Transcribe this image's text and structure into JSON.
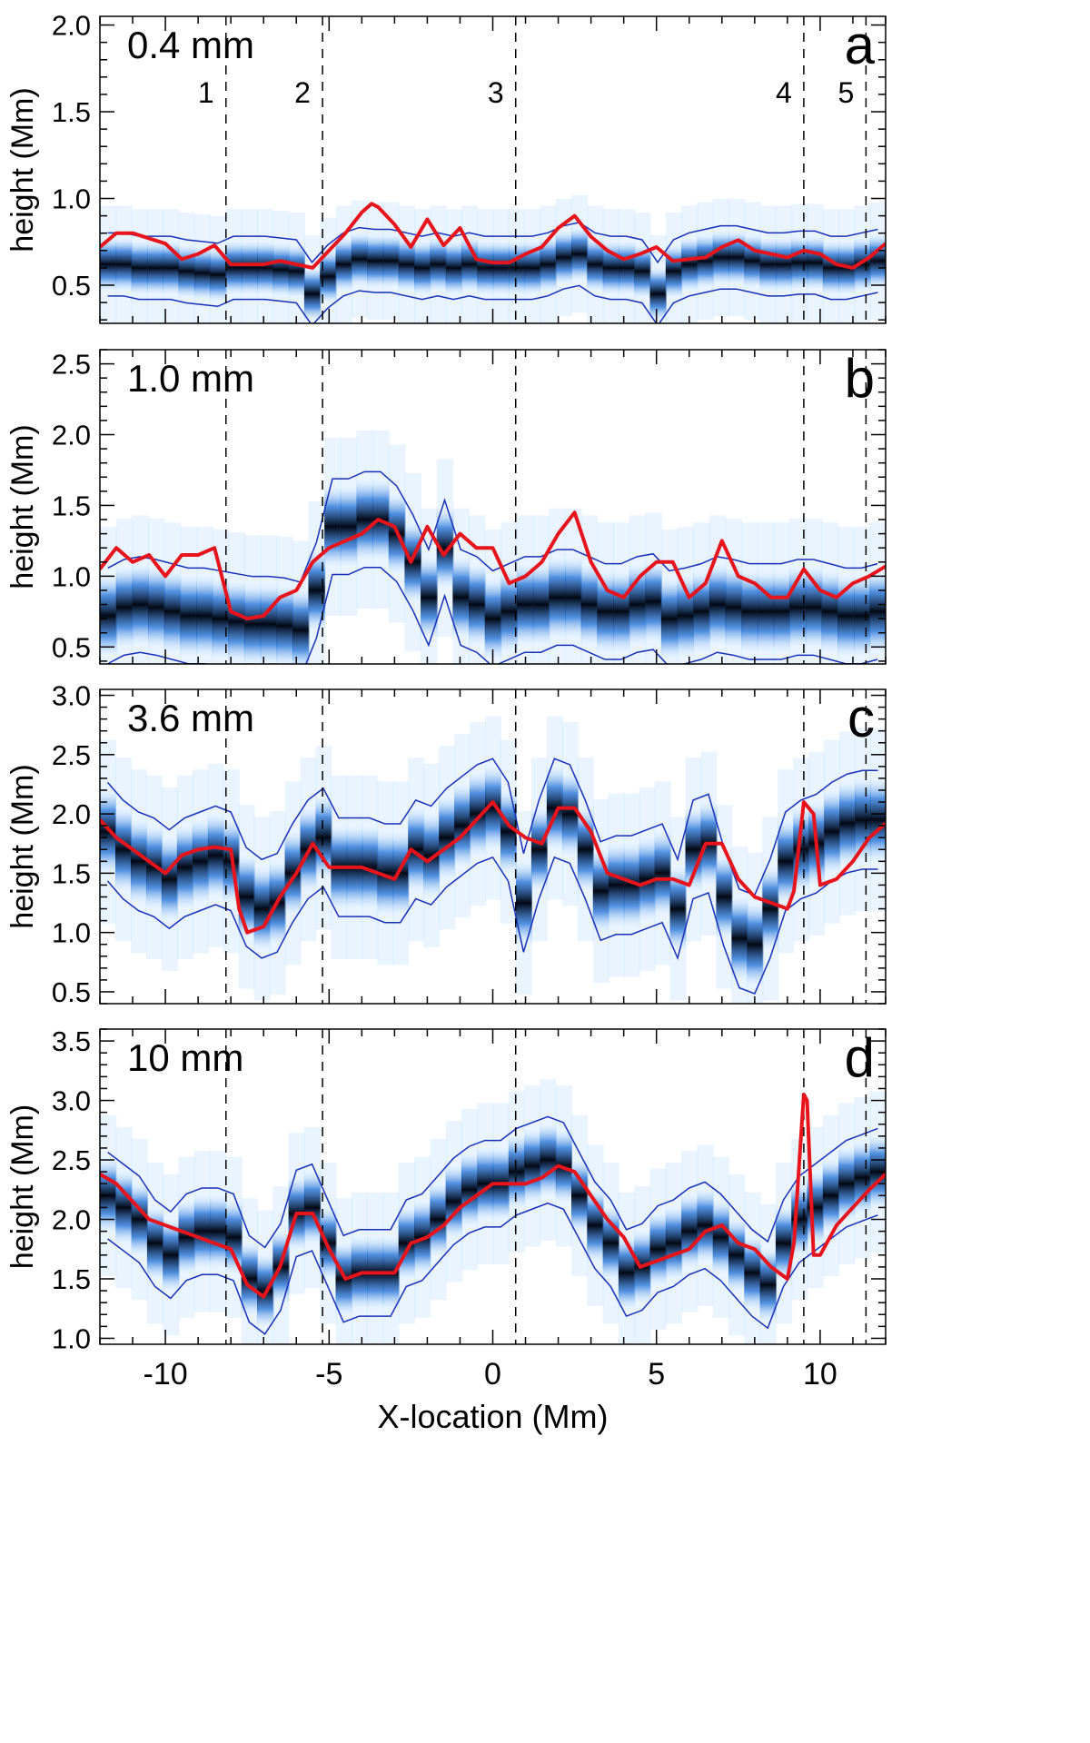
{
  "figure": {
    "xlabel": "X-location (Mm)",
    "ylabel": "height (Mm)",
    "xlim": [
      -12,
      12
    ],
    "xticks": [
      -10,
      -5,
      0,
      5,
      10
    ],
    "xtick_labels": [
      "-10",
      "-5",
      "0",
      "5",
      "10"
    ],
    "vlines": [
      {
        "x": -8.15,
        "label": "1"
      },
      {
        "x": -5.2,
        "label": "2"
      },
      {
        "x": 0.7,
        "label": "3"
      },
      {
        "x": 9.5,
        "label": "4"
      },
      {
        "x": 11.4,
        "label": "5"
      }
    ],
    "colors": {
      "red_curve": "#e8141c",
      "contour": "#1a2fb5",
      "dark": "#030814",
      "mid": "#1f6fd6",
      "light": "#bfe0ff"
    }
  },
  "chart_data": [
    {
      "type": "heatmap",
      "panel": "a",
      "label": "0.4 mm",
      "ylim": [
        0.28,
        2.05
      ],
      "yticks": [
        0.5,
        1.0,
        1.5,
        2.0
      ],
      "ytick_labels": [
        "0.5",
        "1.0",
        "1.5",
        "2.0"
      ],
      "red_curve": {
        "x": [
          -12,
          -11.5,
          -11,
          -10.5,
          -10,
          -9.5,
          -9,
          -8.5,
          -8,
          -7.5,
          -7,
          -6.5,
          -6,
          -5.5,
          -5,
          -4.5,
          -4,
          -3.7,
          -3.5,
          -3,
          -2.5,
          -2,
          -1.5,
          -1,
          -0.5,
          0,
          0.5,
          1,
          1.5,
          2,
          2.5,
          3,
          3.5,
          4,
          4.5,
          5,
          5.5,
          6,
          6.5,
          7,
          7.5,
          8,
          8.5,
          9,
          9.5,
          10,
          10.5,
          11,
          11.5,
          12
        ],
        "y": [
          0.72,
          0.8,
          0.8,
          0.77,
          0.74,
          0.65,
          0.68,
          0.73,
          0.62,
          0.62,
          0.62,
          0.64,
          0.62,
          0.6,
          0.7,
          0.8,
          0.92,
          0.97,
          0.95,
          0.85,
          0.72,
          0.88,
          0.73,
          0.83,
          0.65,
          0.63,
          0.63,
          0.68,
          0.72,
          0.83,
          0.9,
          0.78,
          0.7,
          0.65,
          0.68,
          0.72,
          0.64,
          0.65,
          0.66,
          0.72,
          0.76,
          0.7,
          0.68,
          0.66,
          0.7,
          0.68,
          0.62,
          0.6,
          0.66,
          0.74
        ]
      },
      "band_center": [
        0.62,
        0.62,
        0.6,
        0.6,
        0.6,
        0.58,
        0.57,
        0.56,
        0.6,
        0.6,
        0.6,
        0.59,
        0.58,
        0.45,
        0.55,
        0.62,
        0.65,
        0.64,
        0.64,
        0.62,
        0.6,
        0.62,
        0.6,
        0.62,
        0.6,
        0.6,
        0.6,
        0.6,
        0.62,
        0.66,
        0.68,
        0.62,
        0.6,
        0.6,
        0.58,
        0.45,
        0.58,
        0.62,
        0.64,
        0.66,
        0.66,
        0.64,
        0.62,
        0.62,
        0.63,
        0.63,
        0.6,
        0.6,
        0.62,
        0.64
      ],
      "band_halfwidth": 0.07
    },
    {
      "type": "heatmap",
      "panel": "b",
      "label": "1.0 mm",
      "ylim": [
        0.38,
        2.6
      ],
      "yticks": [
        0.5,
        1.0,
        1.5,
        2.0,
        2.5
      ],
      "ytick_labels": [
        "0.5",
        "1.0",
        "1.5",
        "2.0",
        "2.5"
      ],
      "red_curve": {
        "x": [
          -12,
          -11.5,
          -11,
          -10.5,
          -10,
          -9.5,
          -9,
          -8.5,
          -8,
          -7.5,
          -7,
          -6.5,
          -6,
          -5.5,
          -5,
          -4.5,
          -4,
          -3.5,
          -3,
          -2.5,
          -2,
          -1.5,
          -1,
          -0.5,
          0,
          0.5,
          1,
          1.5,
          2,
          2.5,
          3,
          3.5,
          4,
          4.5,
          5,
          5.5,
          6,
          6.5,
          7,
          7.5,
          8,
          8.5,
          9,
          9.5,
          10,
          10.5,
          11,
          11.5,
          12
        ],
        "y": [
          1.05,
          1.2,
          1.1,
          1.15,
          1.0,
          1.15,
          1.15,
          1.2,
          0.75,
          0.7,
          0.72,
          0.85,
          0.9,
          1.1,
          1.2,
          1.25,
          1.3,
          1.4,
          1.35,
          1.1,
          1.35,
          1.15,
          1.3,
          1.2,
          1.2,
          0.95,
          1.0,
          1.1,
          1.3,
          1.45,
          1.1,
          0.9,
          0.85,
          1.0,
          1.1,
          1.1,
          0.85,
          0.95,
          1.25,
          1.0,
          0.95,
          0.85,
          0.85,
          1.05,
          0.9,
          0.85,
          0.95,
          1.0,
          1.07
        ]
      },
      "band_center": [
        0.72,
        0.78,
        0.8,
        0.78,
        0.75,
        0.72,
        0.72,
        0.7,
        0.68,
        0.66,
        0.66,
        0.65,
        0.62,
        0.9,
        1.35,
        1.35,
        1.4,
        1.4,
        1.3,
        1.1,
        0.85,
        1.2,
        0.85,
        0.8,
        0.7,
        0.75,
        0.8,
        0.8,
        0.85,
        0.85,
        0.8,
        0.75,
        0.75,
        0.8,
        0.82,
        0.7,
        0.72,
        0.75,
        0.8,
        0.78,
        0.75,
        0.75,
        0.75,
        0.78,
        0.78,
        0.75,
        0.72,
        0.72,
        0.75
      ],
      "band_halfwidth": 0.13
    },
    {
      "type": "heatmap",
      "panel": "c",
      "label": "3.6 mm",
      "ylim": [
        0.4,
        3.05
      ],
      "yticks": [
        0.5,
        1.0,
        1.5,
        2.0,
        2.5,
        3.0
      ],
      "ytick_labels": [
        "0.5",
        "1.0",
        "1.5",
        "2.0",
        "2.5",
        "3.0"
      ],
      "red_curve": {
        "x": [
          -12,
          -11.5,
          -11,
          -10.5,
          -10,
          -9.5,
          -9,
          -8.5,
          -8,
          -7.75,
          -7.5,
          -7,
          -6.5,
          -6,
          -5.5,
          -5,
          -4.5,
          -4,
          -3.5,
          -3,
          -2.5,
          -2,
          -1.5,
          -1,
          -0.5,
          0,
          0.5,
          1,
          1.5,
          2,
          2.5,
          3,
          3.5,
          4,
          4.5,
          5,
          5.5,
          6,
          6.5,
          7,
          7.5,
          8,
          8.5,
          9,
          9.2,
          9.5,
          9.8,
          10,
          10.5,
          11,
          11.5,
          12
        ],
        "y": [
          1.95,
          1.8,
          1.7,
          1.6,
          1.5,
          1.65,
          1.7,
          1.72,
          1.7,
          1.2,
          1.0,
          1.05,
          1.3,
          1.5,
          1.75,
          1.55,
          1.55,
          1.55,
          1.5,
          1.45,
          1.7,
          1.6,
          1.7,
          1.8,
          1.95,
          2.1,
          1.9,
          1.8,
          1.75,
          2.05,
          2.05,
          1.85,
          1.5,
          1.45,
          1.4,
          1.45,
          1.45,
          1.4,
          1.75,
          1.75,
          1.45,
          1.3,
          1.25,
          1.2,
          1.35,
          2.1,
          2.0,
          1.4,
          1.45,
          1.6,
          1.8,
          1.92
        ]
      },
      "band_center": [
        1.85,
        1.7,
        1.6,
        1.55,
        1.45,
        1.55,
        1.6,
        1.65,
        1.6,
        1.3,
        1.2,
        1.25,
        1.5,
        1.7,
        1.8,
        1.55,
        1.55,
        1.55,
        1.5,
        1.5,
        1.7,
        1.65,
        1.8,
        1.9,
        2.0,
        2.05,
        1.85,
        1.25,
        1.7,
        2.05,
        2.0,
        1.7,
        1.35,
        1.4,
        1.4,
        1.45,
        1.5,
        1.2,
        1.7,
        1.75,
        1.3,
        0.95,
        0.9,
        1.2,
        1.6,
        1.7,
        1.75,
        1.85,
        1.92,
        1.95,
        1.95
      ],
      "band_halfwidth": 0.16
    },
    {
      "type": "heatmap",
      "panel": "d",
      "label": "10 mm",
      "ylim": [
        0.95,
        3.6
      ],
      "yticks": [
        1.0,
        1.5,
        2.0,
        2.5,
        3.0,
        3.5
      ],
      "ytick_labels": [
        "1.0",
        "1.5",
        "2.0",
        "2.5",
        "3.0",
        "3.5"
      ],
      "red_curve": {
        "x": [
          -12,
          -11.5,
          -11,
          -10.5,
          -10,
          -9.5,
          -9,
          -8.5,
          -8,
          -7.5,
          -7,
          -6.5,
          -6,
          -5.5,
          -5,
          -4.5,
          -4,
          -3.5,
          -3,
          -2.5,
          -2,
          -1.5,
          -1,
          -0.5,
          0,
          0.5,
          1,
          1.5,
          2,
          2.5,
          3,
          3.5,
          4,
          4.5,
          5,
          5.5,
          6,
          6.5,
          7,
          7.5,
          8,
          8.5,
          9,
          9.2,
          9.5,
          9.6,
          9.8,
          10,
          10.5,
          11,
          11.5,
          12
        ],
        "y": [
          2.38,
          2.3,
          2.15,
          2.0,
          1.95,
          1.9,
          1.85,
          1.8,
          1.75,
          1.45,
          1.35,
          1.6,
          2.05,
          2.05,
          1.75,
          1.5,
          1.55,
          1.55,
          1.55,
          1.8,
          1.85,
          1.95,
          2.1,
          2.2,
          2.3,
          2.3,
          2.3,
          2.35,
          2.45,
          2.4,
          2.2,
          2.0,
          1.85,
          1.6,
          1.65,
          1.7,
          1.75,
          1.9,
          1.95,
          1.8,
          1.75,
          1.6,
          1.5,
          1.8,
          3.05,
          3.0,
          1.7,
          1.7,
          1.95,
          2.1,
          2.25,
          2.38
        ]
      },
      "band_center": [
        2.2,
        2.1,
        2.0,
        1.8,
        1.7,
        1.85,
        1.9,
        1.9,
        1.85,
        1.5,
        1.4,
        1.6,
        2.05,
        2.1,
        1.8,
        1.5,
        1.55,
        1.55,
        1.55,
        1.8,
        1.85,
        2.0,
        2.15,
        2.25,
        2.3,
        2.3,
        2.4,
        2.45,
        2.5,
        2.45,
        2.2,
        1.95,
        1.8,
        1.55,
        1.6,
        1.75,
        1.8,
        1.9,
        1.95,
        1.85,
        1.7,
        1.55,
        1.45,
        1.8,
        2.0,
        2.1,
        2.2,
        2.3,
        2.35,
        2.4
      ],
      "band_halfwidth": 0.14
    }
  ]
}
